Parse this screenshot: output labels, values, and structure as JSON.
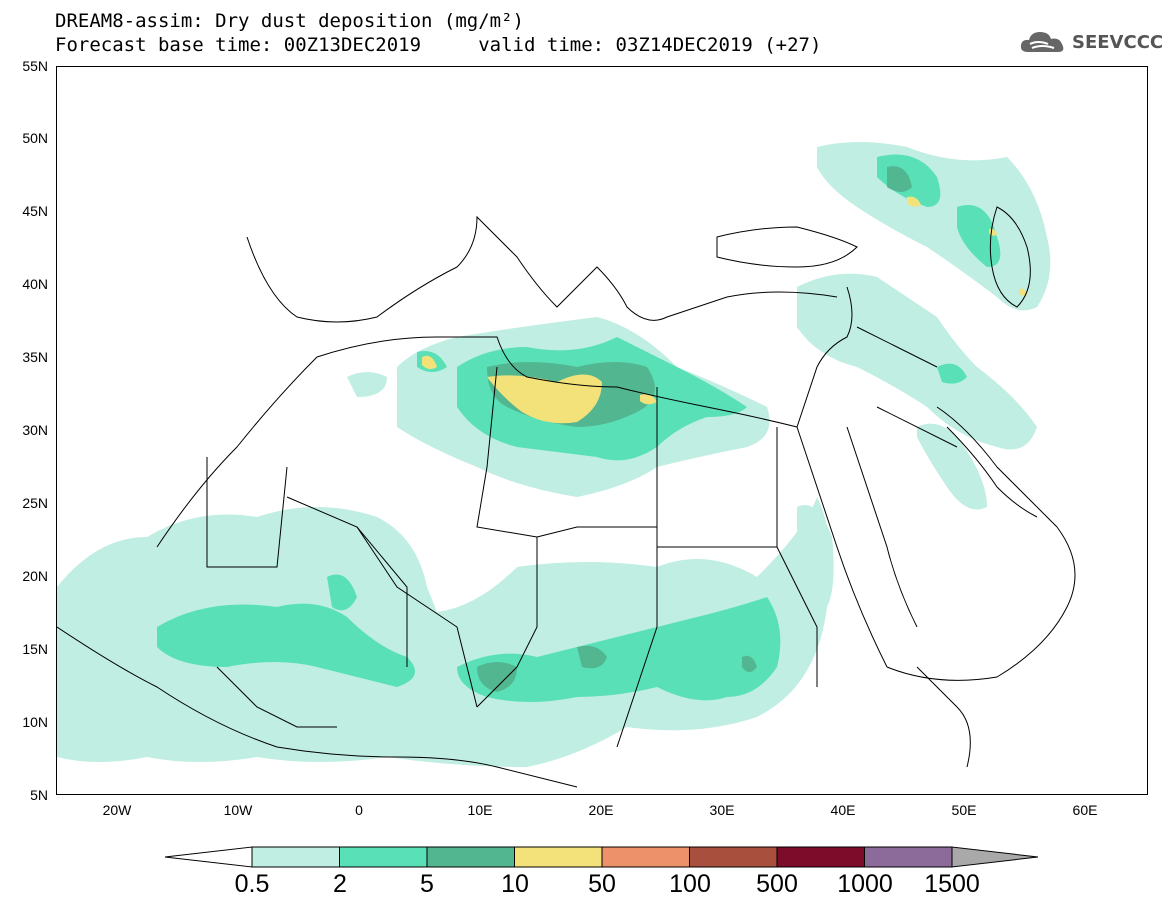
{
  "title_line1": "DREAM8-assim: Dry dust deposition (mg/m²)",
  "title_line2": "Forecast base time: 00Z13DEC2019     valid time: 03Z14DEC2019 (+27)",
  "logo": {
    "text": "SEEVCCC",
    "icon": "cloud-icon",
    "color": "#555555"
  },
  "map": {
    "projection": "lat-lon",
    "lon_range": [
      -25,
      65
    ],
    "lat_range": [
      5,
      55
    ],
    "lat_ticks": [
      "55N",
      "50N",
      "45N",
      "40N",
      "35N",
      "30N",
      "25N",
      "20N",
      "15N",
      "10N",
      "5N"
    ],
    "lon_ticks": [
      "20W",
      "10W",
      "0",
      "10E",
      "20E",
      "30E",
      "40E",
      "50E",
      "60E"
    ],
    "fields": [
      {
        "level": "0.5-2",
        "region": "Sahel belt Senegal to Sudan"
      },
      {
        "level": "0.5-2",
        "region": "Libya, Egypt, eastern Mediterranean coast"
      },
      {
        "level": "0.5-2",
        "region": "Caspian region and Mesopotamia"
      },
      {
        "level": "2-5",
        "region": "Gulf of Sirte, Libya"
      },
      {
        "level": "2-5",
        "region": "Sahel: Mali, Niger, Chad, Sudan"
      },
      {
        "level": "5-10",
        "region": "Lake Chad, Chad, Sudan"
      },
      {
        "level": "10-50",
        "region": "Gulf of Sirte / northern Libya"
      },
      {
        "level": "10-50",
        "region": "northern Caspian coast"
      }
    ]
  },
  "colorbar": {
    "labels": [
      "0.5",
      "2",
      "5",
      "10",
      "50",
      "100",
      "500",
      "1000",
      "1500"
    ],
    "colors": [
      "#c0eee2",
      "#59e0b6",
      "#52b690",
      "#f3e27a",
      "#ec9169",
      "#a84f3d",
      "#7c0c2a",
      "#8c6a9a"
    ],
    "under_color": "#ffffff",
    "over_color": "#a9a9a9"
  }
}
